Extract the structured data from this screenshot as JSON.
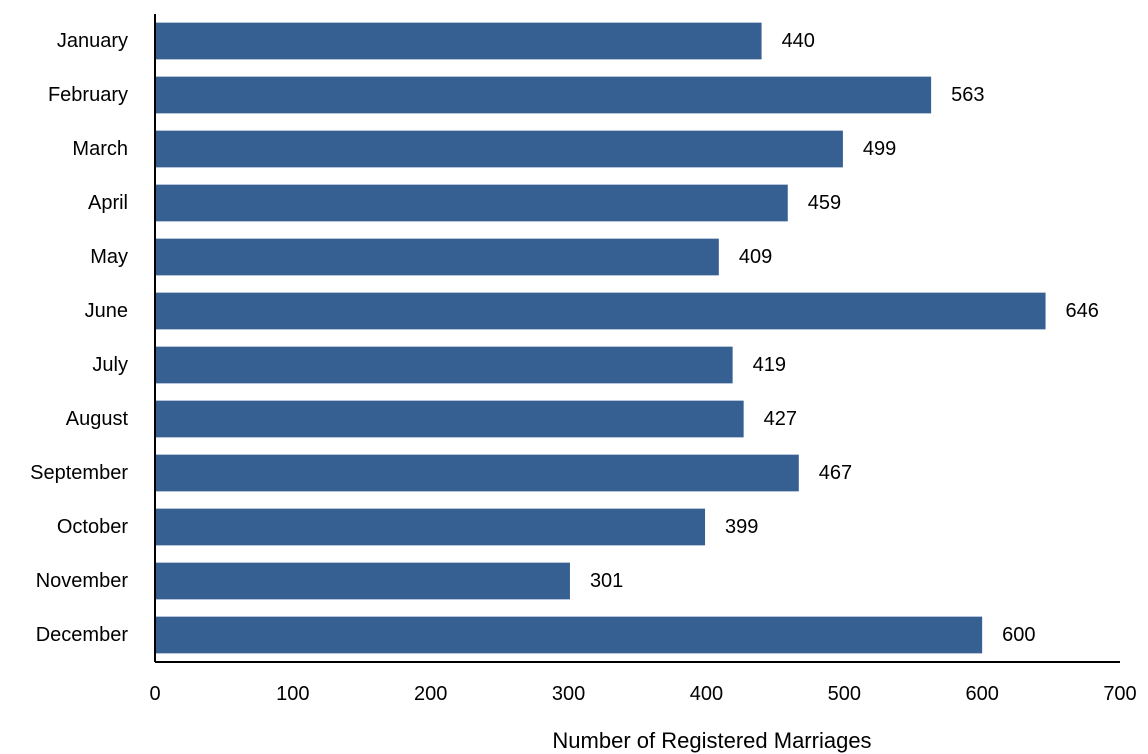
{
  "chart_data": {
    "type": "bar",
    "orientation": "horizontal",
    "title": "",
    "xlabel": "Number of Registered Marriages",
    "ylabel": "",
    "categories": [
      "January",
      "February",
      "March",
      "April",
      "May",
      "June",
      "July",
      "August",
      "September",
      "October",
      "November",
      "December"
    ],
    "values": [
      440,
      563,
      499,
      459,
      409,
      646,
      419,
      427,
      467,
      399,
      301,
      600
    ],
    "data_labels": [
      "440",
      "563",
      "499",
      "459",
      "409",
      "646",
      "419",
      "427",
      "467",
      "399",
      "301",
      "600"
    ],
    "xlim": [
      0,
      700
    ],
    "xticks": [
      0,
      100,
      200,
      300,
      400,
      500,
      600,
      700
    ],
    "xtick_labels": [
      "0",
      "100",
      "200",
      "300",
      "400",
      "500",
      "600",
      "700"
    ],
    "grid": false,
    "legend": "none",
    "bar_color": "#376092"
  }
}
